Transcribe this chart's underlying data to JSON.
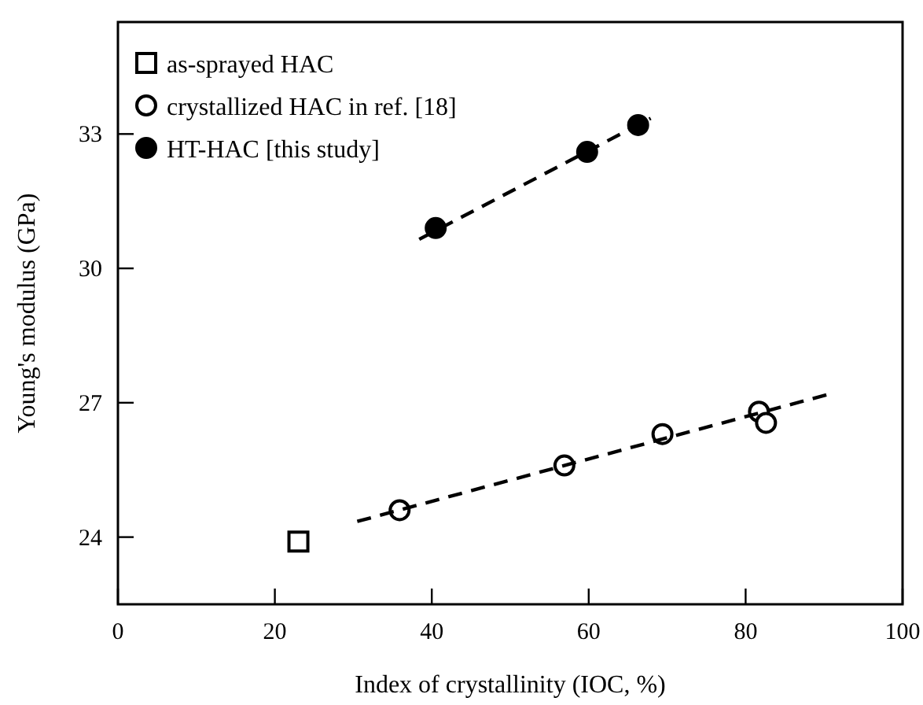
{
  "chart_data": {
    "type": "scatter",
    "xlabel": "Index of crystallinity (IOC, %)",
    "ylabel": "Young's modulus (GPa)",
    "xlim": [
      0,
      100
    ],
    "xticks": [
      0,
      20,
      40,
      60,
      80,
      100
    ],
    "ylim": [
      22.5,
      35.5
    ],
    "yticks": [
      24,
      27,
      30,
      33
    ],
    "grid": false,
    "legend": "top left",
    "series": [
      {
        "name": "as-sprayed HAC",
        "color": "#000000",
        "marker": "square",
        "x": [
          23.0
        ],
        "values": [
          23.9
        ]
      },
      {
        "name": "crystallized HAC in ref. [18]",
        "color": "#000000",
        "marker": "circle",
        "x": [
          35.9,
          56.9,
          69.4,
          81.7,
          82.6
        ],
        "values": [
          24.6,
          25.6,
          26.3,
          26.8,
          26.55
        ]
      },
      {
        "name": "HT-HAC [this study]",
        "color": "#000000",
        "marker": "circle",
        "x": [
          40.5,
          59.8,
          66.3
        ],
        "values": [
          30.9,
          32.6,
          33.2
        ]
      },
      {
        "type": "line",
        "color": "#000000",
        "line_style": "dashed",
        "marker": "none",
        "x": [
          30.5,
          90.8
        ],
        "values": [
          24.35,
          27.2
        ]
      },
      {
        "type": "line",
        "color": "#000000",
        "line_style": "dashed",
        "marker": "none",
        "x": [
          38.4,
          67.9
        ],
        "values": [
          30.65,
          33.35
        ]
      }
    ]
  }
}
